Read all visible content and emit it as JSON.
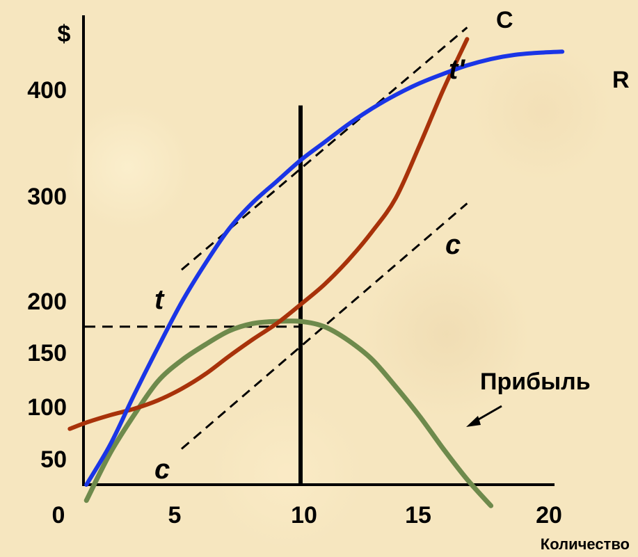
{
  "chart_data": {
    "type": "line",
    "ylabel": "$",
    "xlabel": "Количество",
    "xlim": [
      0,
      22
    ],
    "ylim": [
      0,
      420
    ],
    "x_ticks": [
      "0",
      "5",
      "10",
      "15",
      "20"
    ],
    "y_ticks": [
      "50",
      "100",
      "150",
      "200",
      "300",
      "400"
    ],
    "series": [
      {
        "name": "R",
        "color": "#1a35e6",
        "points": [
          [
            1,
            0
          ],
          [
            2,
            38
          ],
          [
            3,
            85
          ],
          [
            4,
            130
          ],
          [
            5,
            173
          ],
          [
            6,
            210
          ],
          [
            7,
            243
          ],
          [
            8,
            268
          ],
          [
            9,
            288
          ],
          [
            10,
            308
          ],
          [
            11,
            325
          ],
          [
            12,
            342
          ],
          [
            13,
            357
          ],
          [
            14,
            370
          ],
          [
            15,
            381
          ],
          [
            16,
            390
          ],
          [
            17,
            398
          ],
          [
            18,
            404
          ],
          [
            19,
            408
          ],
          [
            20,
            410
          ],
          [
            21,
            411
          ]
        ]
      },
      {
        "name": "C",
        "color": "#a8320a",
        "points": [
          [
            0.3,
            53
          ],
          [
            1,
            59
          ],
          [
            2,
            66
          ],
          [
            3,
            72
          ],
          [
            4,
            80
          ],
          [
            5,
            91
          ],
          [
            6,
            105
          ],
          [
            7,
            122
          ],
          [
            8,
            138
          ],
          [
            9,
            153
          ],
          [
            10,
            171
          ],
          [
            11,
            190
          ],
          [
            12,
            213
          ],
          [
            13,
            240
          ],
          [
            14,
            272
          ],
          [
            15,
            322
          ],
          [
            16,
            375
          ],
          [
            17,
            423
          ]
        ]
      },
      {
        "name": "Прибыль",
        "color": "#6e8a4c",
        "points": [
          [
            1,
            -15
          ],
          [
            2,
            30
          ],
          [
            3,
            66
          ],
          [
            4,
            98
          ],
          [
            5,
            118
          ],
          [
            6,
            133
          ],
          [
            7,
            146
          ],
          [
            8,
            153
          ],
          [
            9,
            155
          ],
          [
            10,
            155
          ],
          [
            11,
            150
          ],
          [
            12,
            137
          ],
          [
            13,
            119
          ],
          [
            14,
            93
          ],
          [
            15,
            65
          ],
          [
            16,
            34
          ],
          [
            17,
            5
          ],
          [
            18,
            -20
          ]
        ]
      }
    ],
    "tangents": [
      {
        "label_start": "t",
        "label_end": "t'",
        "from": [
          5,
          204
        ],
        "to": [
          17,
          434
        ]
      },
      {
        "label_start": "c",
        "label_end": "c",
        "from": [
          5,
          34
        ],
        "to": [
          17,
          267
        ]
      }
    ],
    "reference_lines": {
      "vertical_x": 10,
      "vertical_top": 360,
      "horizontal_y": 150
    },
    "annotations": {
      "revenue_label": "R",
      "cost_label": "C",
      "tangent_t_start": "t",
      "tangent_t_end": "t'",
      "tangent_c_start": "c",
      "tangent_c_end": "c",
      "profit_label": "Прибыль"
    }
  }
}
